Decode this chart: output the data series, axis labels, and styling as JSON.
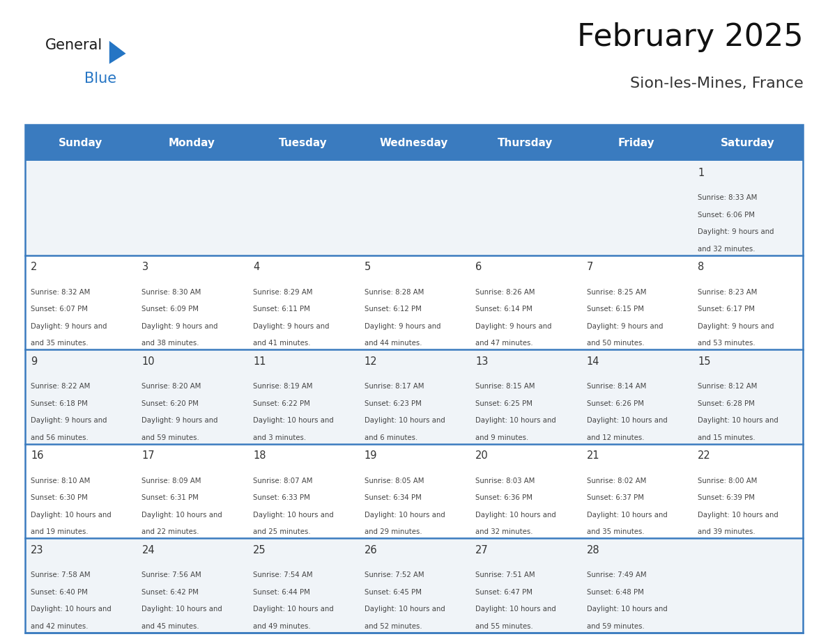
{
  "title": "February 2025",
  "subtitle": "Sion-les-Mines, France",
  "days_of_week": [
    "Sunday",
    "Monday",
    "Tuesday",
    "Wednesday",
    "Thursday",
    "Friday",
    "Saturday"
  ],
  "header_bg": "#3a7bbf",
  "header_text": "#ffffff",
  "cell_bg_light": "#f0f4f8",
  "cell_bg_white": "#ffffff",
  "border_color": "#3a7bbf",
  "text_color": "#222222",
  "day_number_color": "#333333",
  "info_text_color": "#444444",
  "calendar_data": [
    {
      "day": 1,
      "col": 6,
      "row": 0,
      "sunrise": "8:33 AM",
      "sunset": "6:06 PM",
      "daylight": "9 hours and 32 minutes."
    },
    {
      "day": 2,
      "col": 0,
      "row": 1,
      "sunrise": "8:32 AM",
      "sunset": "6:07 PM",
      "daylight": "9 hours and 35 minutes."
    },
    {
      "day": 3,
      "col": 1,
      "row": 1,
      "sunrise": "8:30 AM",
      "sunset": "6:09 PM",
      "daylight": "9 hours and 38 minutes."
    },
    {
      "day": 4,
      "col": 2,
      "row": 1,
      "sunrise": "8:29 AM",
      "sunset": "6:11 PM",
      "daylight": "9 hours and 41 minutes."
    },
    {
      "day": 5,
      "col": 3,
      "row": 1,
      "sunrise": "8:28 AM",
      "sunset": "6:12 PM",
      "daylight": "9 hours and 44 minutes."
    },
    {
      "day": 6,
      "col": 4,
      "row": 1,
      "sunrise": "8:26 AM",
      "sunset": "6:14 PM",
      "daylight": "9 hours and 47 minutes."
    },
    {
      "day": 7,
      "col": 5,
      "row": 1,
      "sunrise": "8:25 AM",
      "sunset": "6:15 PM",
      "daylight": "9 hours and 50 minutes."
    },
    {
      "day": 8,
      "col": 6,
      "row": 1,
      "sunrise": "8:23 AM",
      "sunset": "6:17 PM",
      "daylight": "9 hours and 53 minutes."
    },
    {
      "day": 9,
      "col": 0,
      "row": 2,
      "sunrise": "8:22 AM",
      "sunset": "6:18 PM",
      "daylight": "9 hours and 56 minutes."
    },
    {
      "day": 10,
      "col": 1,
      "row": 2,
      "sunrise": "8:20 AM",
      "sunset": "6:20 PM",
      "daylight": "9 hours and 59 minutes."
    },
    {
      "day": 11,
      "col": 2,
      "row": 2,
      "sunrise": "8:19 AM",
      "sunset": "6:22 PM",
      "daylight": "10 hours and 3 minutes."
    },
    {
      "day": 12,
      "col": 3,
      "row": 2,
      "sunrise": "8:17 AM",
      "sunset": "6:23 PM",
      "daylight": "10 hours and 6 minutes."
    },
    {
      "day": 13,
      "col": 4,
      "row": 2,
      "sunrise": "8:15 AM",
      "sunset": "6:25 PM",
      "daylight": "10 hours and 9 minutes."
    },
    {
      "day": 14,
      "col": 5,
      "row": 2,
      "sunrise": "8:14 AM",
      "sunset": "6:26 PM",
      "daylight": "10 hours and 12 minutes."
    },
    {
      "day": 15,
      "col": 6,
      "row": 2,
      "sunrise": "8:12 AM",
      "sunset": "6:28 PM",
      "daylight": "10 hours and 15 minutes."
    },
    {
      "day": 16,
      "col": 0,
      "row": 3,
      "sunrise": "8:10 AM",
      "sunset": "6:30 PM",
      "daylight": "10 hours and 19 minutes."
    },
    {
      "day": 17,
      "col": 1,
      "row": 3,
      "sunrise": "8:09 AM",
      "sunset": "6:31 PM",
      "daylight": "10 hours and 22 minutes."
    },
    {
      "day": 18,
      "col": 2,
      "row": 3,
      "sunrise": "8:07 AM",
      "sunset": "6:33 PM",
      "daylight": "10 hours and 25 minutes."
    },
    {
      "day": 19,
      "col": 3,
      "row": 3,
      "sunrise": "8:05 AM",
      "sunset": "6:34 PM",
      "daylight": "10 hours and 29 minutes."
    },
    {
      "day": 20,
      "col": 4,
      "row": 3,
      "sunrise": "8:03 AM",
      "sunset": "6:36 PM",
      "daylight": "10 hours and 32 minutes."
    },
    {
      "day": 21,
      "col": 5,
      "row": 3,
      "sunrise": "8:02 AM",
      "sunset": "6:37 PM",
      "daylight": "10 hours and 35 minutes."
    },
    {
      "day": 22,
      "col": 6,
      "row": 3,
      "sunrise": "8:00 AM",
      "sunset": "6:39 PM",
      "daylight": "10 hours and 39 minutes."
    },
    {
      "day": 23,
      "col": 0,
      "row": 4,
      "sunrise": "7:58 AM",
      "sunset": "6:40 PM",
      "daylight": "10 hours and 42 minutes."
    },
    {
      "day": 24,
      "col": 1,
      "row": 4,
      "sunrise": "7:56 AM",
      "sunset": "6:42 PM",
      "daylight": "10 hours and 45 minutes."
    },
    {
      "day": 25,
      "col": 2,
      "row": 4,
      "sunrise": "7:54 AM",
      "sunset": "6:44 PM",
      "daylight": "10 hours and 49 minutes."
    },
    {
      "day": 26,
      "col": 3,
      "row": 4,
      "sunrise": "7:52 AM",
      "sunset": "6:45 PM",
      "daylight": "10 hours and 52 minutes."
    },
    {
      "day": 27,
      "col": 4,
      "row": 4,
      "sunrise": "7:51 AM",
      "sunset": "6:47 PM",
      "daylight": "10 hours and 55 minutes."
    },
    {
      "day": 28,
      "col": 5,
      "row": 4,
      "sunrise": "7:49 AM",
      "sunset": "6:48 PM",
      "daylight": "10 hours and 59 minutes."
    }
  ],
  "num_rows": 5,
  "logo_triangle_color": "#2575c4"
}
